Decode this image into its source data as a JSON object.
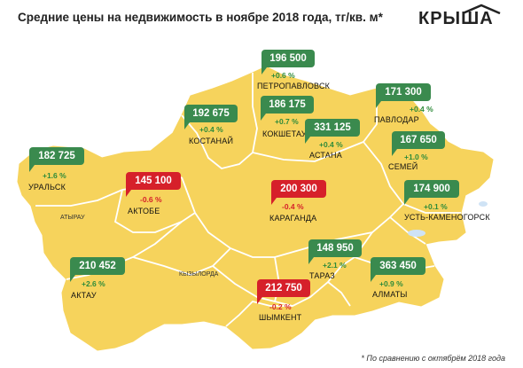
{
  "header": {
    "title": "Средние цены на недвижимость в ноябре 2018 года, тг/кв. м*",
    "logo": "КРЫША"
  },
  "colors": {
    "map_fill": "#f6d35c",
    "map_border": "#ffffff",
    "positive": "#3a8a4e",
    "negative": "#d6202a",
    "water": "#cfe3f5"
  },
  "regions": [
    "АТЫРАУ",
    "КЫЗЫЛОРДА"
  ],
  "cities": [
    {
      "id": "petropavlovsk",
      "name": "ПЕТРОПАВЛОВСК",
      "price": "196 500",
      "change": "+0.6 %",
      "trend": "up"
    },
    {
      "id": "pavlodar",
      "name": "ПАВЛОДАР",
      "price": "171 300",
      "change": "+0.4 %",
      "trend": "up"
    },
    {
      "id": "kostanay",
      "name": "КОСТАНАЙ",
      "price": "192 675",
      "change": "+0.4 %",
      "trend": "up"
    },
    {
      "id": "kokshetau",
      "name": "КОКШЕТАУ",
      "price": "186 175",
      "change": "+0.7 %",
      "trend": "up"
    },
    {
      "id": "astana",
      "name": "АСТАНА",
      "price": "331 125",
      "change": "+0.4 %",
      "trend": "up"
    },
    {
      "id": "semey",
      "name": "СЕМЕЙ",
      "price": "167 650",
      "change": "+1.0 %",
      "trend": "up"
    },
    {
      "id": "uralsk",
      "name": "УРАЛЬСК",
      "price": "182 725",
      "change": "+1.6 %",
      "trend": "up"
    },
    {
      "id": "aktobe",
      "name": "АКТОБЕ",
      "price": "145 100",
      "change": "-0.6 %",
      "trend": "down"
    },
    {
      "id": "karaganda",
      "name": "КАРАГАНДА",
      "price": "200 300",
      "change": "-0.4 %",
      "trend": "down"
    },
    {
      "id": "ust-kamenogorsk",
      "name": "УСТЬ-КАМЕНОГОРСК",
      "price": "174 900",
      "change": "+0.1 %",
      "trend": "up"
    },
    {
      "id": "aktau",
      "name": "АКТАУ",
      "price": "210 452",
      "change": "+2.6 %",
      "trend": "up"
    },
    {
      "id": "taraz",
      "name": "ТАРАЗ",
      "price": "148 950",
      "change": "+2.1 %",
      "trend": "up"
    },
    {
      "id": "almaty",
      "name": "АЛМАТЫ",
      "price": "363 450",
      "change": "+0.9 %",
      "trend": "up"
    },
    {
      "id": "shymkent",
      "name": "ШЫМКЕНТ",
      "price": "212 750",
      "change": "-0.2 %",
      "trend": "down"
    }
  ],
  "footnote": "* По сравнению с октябрём 2018 года"
}
